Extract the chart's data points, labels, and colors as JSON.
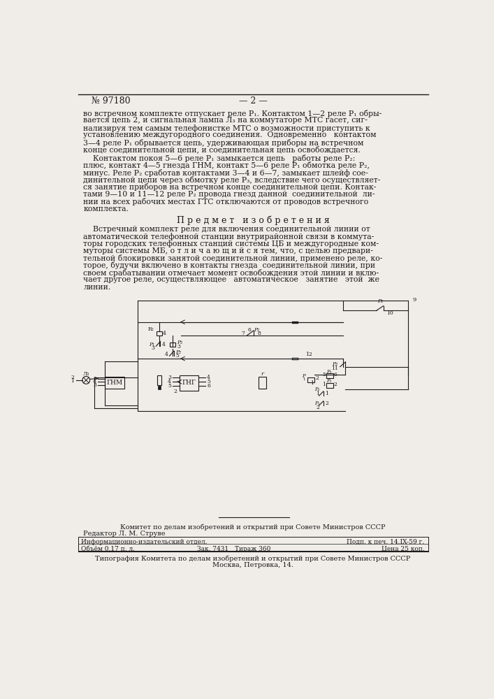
{
  "page_number": "№ 97180",
  "page_marker": "— 2 —",
  "background_color": "#f0ede8",
  "text_color": "#1a1a1a",
  "body_text_1": "во встречном комплекте отпускает реле P₁. Контактом 1—2 реле P₁ обры-\nвается цепь 2, и сигнальная лампа Л₃ на коммутаторе МТС гасет, сиг-\nнализируя тем самым телефонистке МТС о возможности приступить к\nустановлению междугородного соединения.  Одновременно   контактом\n3—4 реле P₁ обрывается цепь, удерживающая приборы на встречном\nконце соединительной цепи, и соединительная цепь освобождается.",
  "body_text_2": "    Контактом покоя 5—6 реле P₁ замыкается цепь   работы реле P₂:\nплюс, контакт 4—5 гнезда ГНМ, контакт 5—6 реле P₁ обмотка реле P₂,\nминус. Реле P₂ сработав контактами 3—4 и 6—7, замыкает шлейф сое-\nдинительной цепи через обмотку реле P₃, вследствие чего осуществляет-\nся занятие приборов на встречном конце соединительной цепи. Контак-\nтами 9—10 и 11—12 реле P₂ провода гнезд данной  соединительной  ли-\nнии на всех рабочих местах ГТС отключаются от проводов встречного\nкомплекта.",
  "section_title": "П р е д м е т   и з о б р е т е н и я",
  "body_text_3": "    Встречный комплект реле для включения соединительной линии от\nавтоматической телефонной станции внутрирайонной связи в коммута-\nторы городских телефонных станций системы ЦБ и междугородные ком-\nмуторы системы МБ, о т л и ч а ю щ и й с я тем, что, с целью предвари-\nтельной блокировки занятой соединительной линии, применено реле, ко-\nторое, будучи включено в контакты гнезда  соединительной линии, при\nсвоем срабатывании отмечает момент освобождения этой линии и вклю-\nчает другое реле, осуществляющее   автоматическое   занятие   этой  же\nлинии.",
  "footer_line1": "Комитет по делам изобретений и открытий при Совете Министров СССР",
  "footer_line2": "Редактор Л. М. Струве",
  "footer_table": [
    [
      "Информационно-издательский отдел.",
      "",
      "",
      "Подп. к печ. 14.IX-59 г."
    ],
    [
      "Объём 0,17 п. л.",
      "Зак. 7431",
      "Тираж 360",
      "Цена 25 коп."
    ]
  ],
  "footer_bottom": "Типография Комитета по делам изобретений и открытий при Совете Министров СССР\nМосква, Петровка, 14."
}
